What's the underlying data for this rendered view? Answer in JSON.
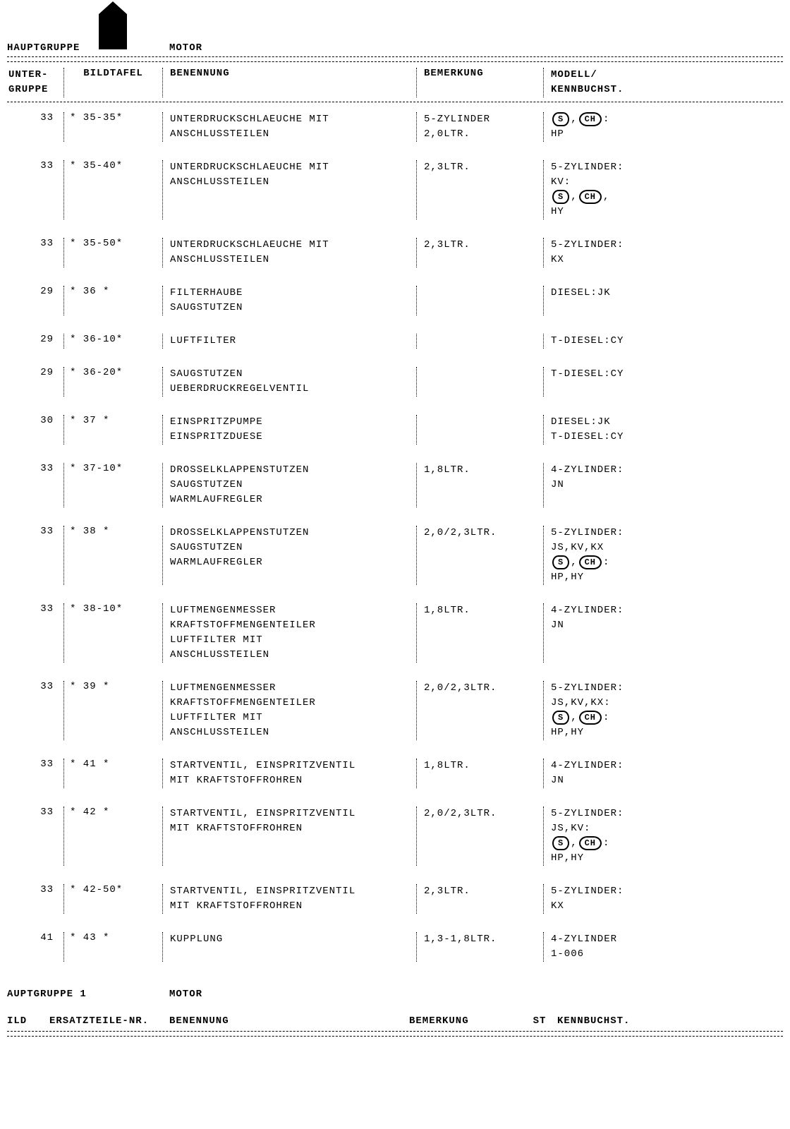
{
  "header": {
    "hauptgruppe_label": "HAUPTGRUPPE",
    "hauptgruppe_value": "MOTOR"
  },
  "columns": {
    "unter": "UNTER-\nGRUPPE",
    "bildtafel": "BILDTAFEL",
    "benennung": "BENENNUNG",
    "bemerkung": "BEMERKUNG",
    "modell": "MODELL/\nKENNBUCHST."
  },
  "rows": [
    {
      "unter": "33",
      "bild": "* 35-35*",
      "benen": "UNTERDRUCKSCHLAEUCHE MIT\nANSCHLUSSTEILEN",
      "bemer": "5-ZYLINDER\n2,0LTR.",
      "modell_lines": [
        {
          "badges": [
            "S",
            "CH"
          ],
          "suffix": ":"
        },
        {
          "text": "HP"
        }
      ]
    },
    {
      "unter": "33",
      "bild": "* 35-40*",
      "benen": "UNTERDRUCKSCHLAEUCHE MIT\nANSCHLUSSTEILEN",
      "bemer": "2,3LTR.",
      "modell_lines": [
        {
          "text": "5-ZYLINDER:"
        },
        {
          "text": "KV:"
        },
        {
          "badges": [
            "S",
            "CH"
          ],
          "suffix": ","
        },
        {
          "text": "HY"
        }
      ]
    },
    {
      "unter": "33",
      "bild": "* 35-50*",
      "benen": "UNTERDRUCKSCHLAEUCHE MIT\nANSCHLUSSTEILEN",
      "bemer": "2,3LTR.",
      "modell_lines": [
        {
          "text": "5-ZYLINDER:"
        },
        {
          "text": "KX"
        }
      ]
    },
    {
      "unter": "29",
      "bild": "* 36   *",
      "benen": "FILTERHAUBE\nSAUGSTUTZEN",
      "bemer": "",
      "modell_lines": [
        {
          "text": "DIESEL:JK"
        }
      ]
    },
    {
      "unter": "29",
      "bild": "* 36-10*",
      "benen": "LUFTFILTER",
      "bemer": "",
      "modell_lines": [
        {
          "text": "T-DIESEL:CY"
        }
      ]
    },
    {
      "unter": "29",
      "bild": "* 36-20*",
      "benen": "SAUGSTUTZEN\nUEBERDRUCKREGELVENTIL",
      "bemer": "",
      "modell_lines": [
        {
          "text": "T-DIESEL:CY"
        }
      ]
    },
    {
      "unter": "30",
      "bild": "* 37   *",
      "benen": "EINSPRITZPUMPE\nEINSPRITZDUESE",
      "bemer": "",
      "modell_lines": [
        {
          "text": "DIESEL:JK"
        },
        {
          "text": "T-DIESEL:CY"
        }
      ]
    },
    {
      "unter": "33",
      "bild": "* 37-10*",
      "benen": "DROSSELKLAPPENSTUTZEN\nSAUGSTUTZEN\nWARMLAUFREGLER",
      "bemer": "1,8LTR.",
      "modell_lines": [
        {
          "text": "4-ZYLINDER:"
        },
        {
          "text": "JN"
        }
      ]
    },
    {
      "unter": "33",
      "bild": "* 38   *",
      "benen": "DROSSELKLAPPENSTUTZEN\nSAUGSTUTZEN\nWARMLAUFREGLER",
      "bemer": "2,0/2,3LTR.",
      "modell_lines": [
        {
          "text": "5-ZYLINDER:"
        },
        {
          "text": "JS,KV,KX"
        },
        {
          "badges": [
            "S",
            "CH"
          ],
          "suffix": ":"
        },
        {
          "text": "HP,HY"
        }
      ]
    },
    {
      "unter": "33",
      "bild": "* 38-10*",
      "benen": "LUFTMENGENMESSER\nKRAFTSTOFFMENGENTEILER\nLUFTFILTER MIT\nANSCHLUSSTEILEN",
      "bemer": "1,8LTR.",
      "modell_lines": [
        {
          "text": "4-ZYLINDER:"
        },
        {
          "text": "JN"
        }
      ]
    },
    {
      "unter": "33",
      "bild": "* 39   *",
      "benen": "LUFTMENGENMESSER\nKRAFTSTOFFMENGENTEILER\nLUFTFILTER MIT\nANSCHLUSSTEILEN",
      "bemer": "2,0/2,3LTR.",
      "modell_lines": [
        {
          "text": "5-ZYLINDER:"
        },
        {
          "text": "JS,KV,KX:"
        },
        {
          "badges": [
            "S",
            "CH"
          ],
          "suffix": ":"
        },
        {
          "text": "HP,HY"
        }
      ]
    },
    {
      "unter": "33",
      "bild": "* 41   *",
      "benen": "STARTVENTIL, EINSPRITZVENTIL\nMIT KRAFTSTOFFROHREN",
      "bemer": "1,8LTR.",
      "modell_lines": [
        {
          "text": "4-ZYLINDER:"
        },
        {
          "text": "JN"
        }
      ]
    },
    {
      "unter": "33",
      "bild": "* 42   *",
      "benen": "STARTVENTIL, EINSPRITZVENTIL\nMIT KRAFTSTOFFROHREN",
      "bemer": "2,0/2,3LTR.",
      "modell_lines": [
        {
          "text": "5-ZYLINDER:"
        },
        {
          "text": "JS,KV:"
        },
        {
          "badges": [
            "S",
            "CH"
          ],
          "suffix": ":"
        },
        {
          "text": "HP,HY"
        }
      ]
    },
    {
      "unter": "33",
      "bild": "* 42-50*",
      "benen": "STARTVENTIL, EINSPRITZVENTIL\nMIT KRAFTSTOFFROHREN",
      "bemer": "2,3LTR.",
      "modell_lines": [
        {
          "text": "5-ZYLINDER:"
        },
        {
          "text": "KX"
        }
      ]
    },
    {
      "unter": "41",
      "bild": "* 43   *",
      "benen": "KUPPLUNG",
      "bemer": "1,3-1,8LTR.",
      "modell_lines": [
        {
          "text": "4-ZYLINDER"
        },
        {
          "text": "1-006"
        }
      ]
    }
  ],
  "footer": {
    "hauptgruppe_label": "AUPTGRUPPE   1",
    "hauptgruppe_value": "MOTOR",
    "cols": {
      "ild": "ILD",
      "ersatz": "ERSATZTEILE-NR.",
      "benennung": "BENENNUNG",
      "bemerkung": "BEMERKUNG",
      "st": "ST",
      "kennbuchst": "KENNBUCHST."
    }
  }
}
